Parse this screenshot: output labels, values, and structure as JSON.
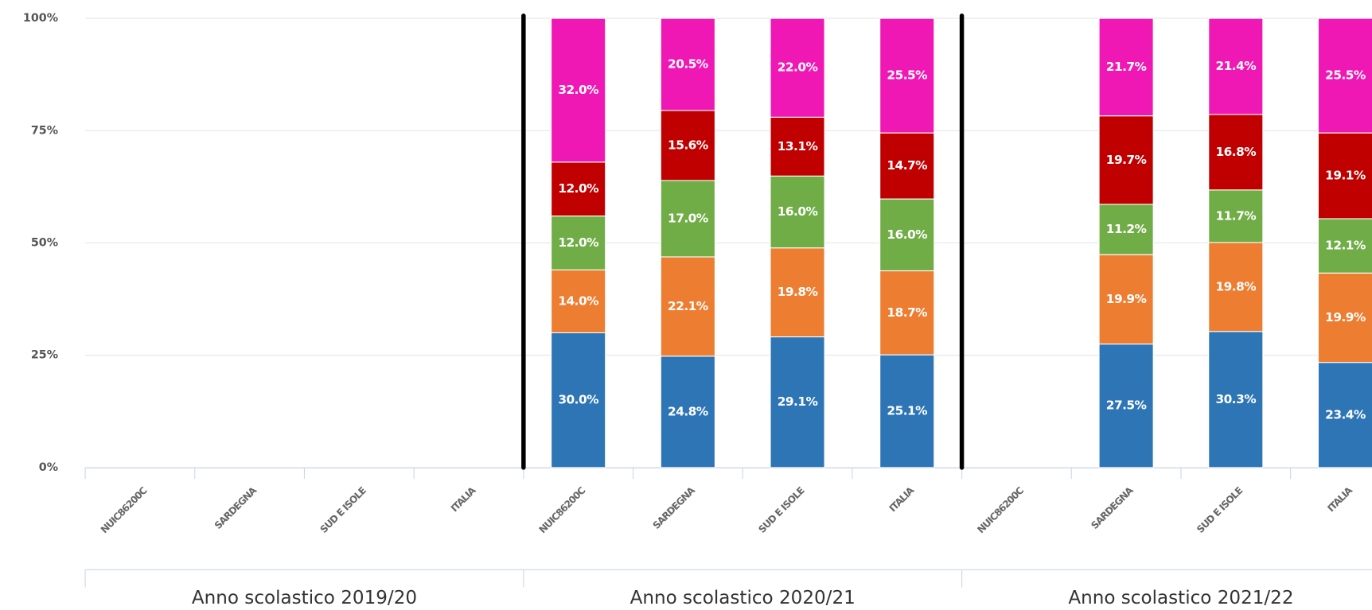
{
  "chart_data": {
    "type": "bar",
    "stacked": true,
    "categories": [
      "NUIC86200C",
      "SARDEGNA",
      "SUD E ISOLE",
      "ITALIA",
      "NUIC86200C",
      "SARDEGNA",
      "SUD E ISOLE",
      "ITALIA",
      "NUIC86200C",
      "SARDEGNA",
      "SUD E ISOLE",
      "ITALIA"
    ],
    "groups": [
      "Anno scolastico 2019/20",
      "Anno scolastico 2020/21",
      "Anno scolastico 2021/22"
    ],
    "ylim": [
      0,
      100
    ],
    "yticks": [
      {
        "value": 0,
        "label": "0%"
      },
      {
        "value": 25,
        "label": "25%"
      },
      {
        "value": 50,
        "label": "50%"
      },
      {
        "value": 75,
        "label": "75%"
      },
      {
        "value": 100,
        "label": "100%"
      }
    ],
    "grid": true,
    "series": [
      {
        "color": "#2e75b6",
        "values": [
          null,
          null,
          null,
          null,
          30.0,
          24.8,
          29.1,
          25.1,
          null,
          27.5,
          30.3,
          23.4
        ],
        "value_labels": [
          null,
          null,
          null,
          null,
          "30.0%",
          "24.8%",
          "29.1%",
          "25.1%",
          null,
          "27.5%",
          "30.3%",
          "23.4%"
        ]
      },
      {
        "color": "#ed7d31",
        "values": [
          null,
          null,
          null,
          null,
          14.0,
          22.1,
          19.8,
          18.7,
          null,
          19.9,
          19.8,
          19.9
        ],
        "value_labels": [
          null,
          null,
          null,
          null,
          "14.0%",
          "22.1%",
          "19.8%",
          "18.7%",
          null,
          "19.9%",
          "19.8%",
          "19.9%"
        ]
      },
      {
        "color": "#70ad47",
        "values": [
          null,
          null,
          null,
          null,
          12.0,
          17.0,
          16.0,
          16.0,
          null,
          11.2,
          11.7,
          12.1
        ],
        "value_labels": [
          null,
          null,
          null,
          null,
          "12.0%",
          "17.0%",
          "16.0%",
          "16.0%",
          null,
          "11.2%",
          "11.7%",
          "12.1%"
        ]
      },
      {
        "color": "#c00000",
        "values": [
          null,
          null,
          null,
          null,
          12.0,
          15.6,
          13.1,
          14.7,
          null,
          19.7,
          16.8,
          19.1
        ],
        "value_labels": [
          null,
          null,
          null,
          null,
          "12.0%",
          "15.6%",
          "13.1%",
          "14.7%",
          null,
          "19.7%",
          "16.8%",
          "19.1%"
        ]
      },
      {
        "color": "#f018b4",
        "values": [
          null,
          null,
          null,
          null,
          32.0,
          20.5,
          22.0,
          25.5,
          null,
          21.7,
          21.4,
          25.5
        ],
        "value_labels": [
          null,
          null,
          null,
          null,
          "32.0%",
          "20.5%",
          "22.0%",
          "25.5%",
          null,
          "21.7%",
          "21.4%",
          "25.5%"
        ]
      }
    ]
  }
}
